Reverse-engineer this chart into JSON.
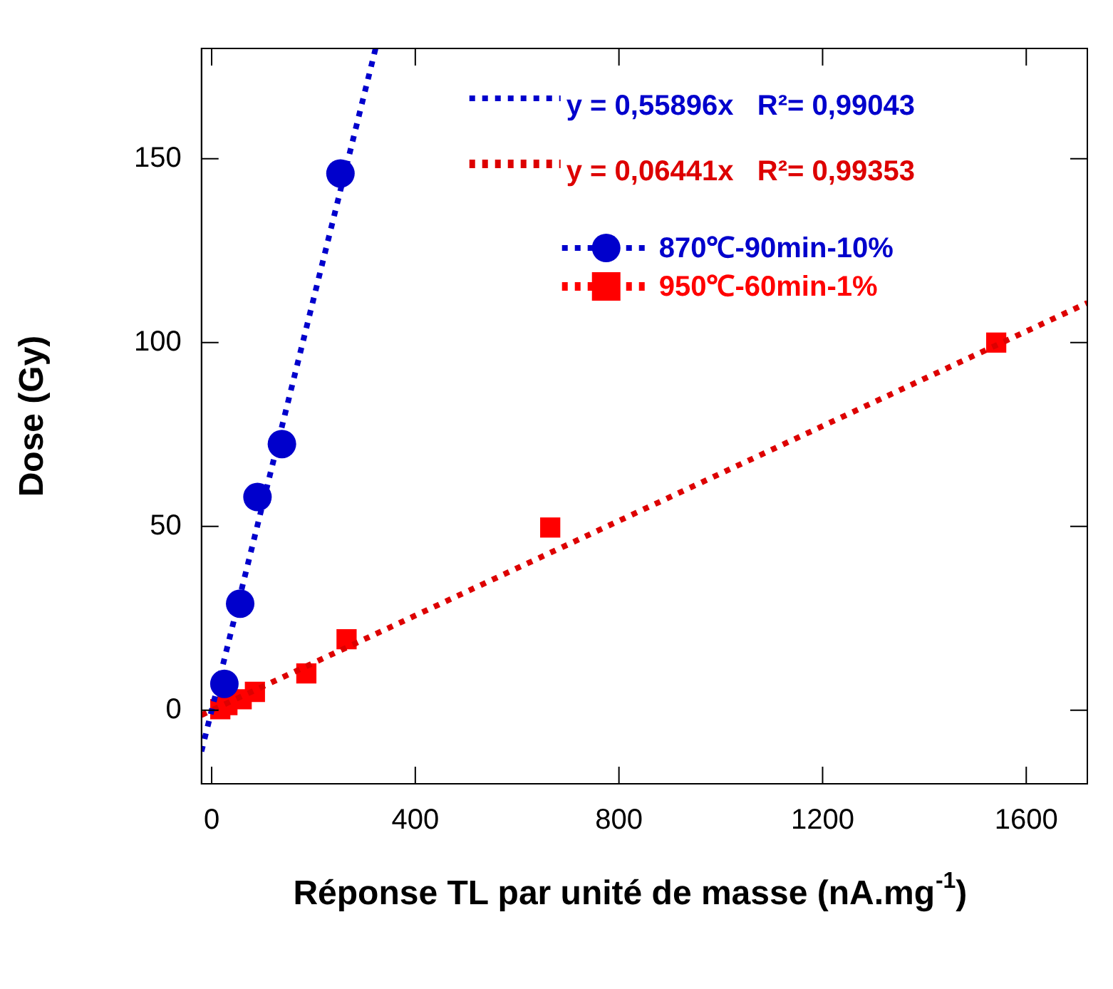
{
  "chart_data": {
    "type": "scatter",
    "xlabel": "Réponse TL par unité de masse (nA.mg$^{-1}$)",
    "ylabel": "Dose (Gy)",
    "xlim": [
      -20,
      1720
    ],
    "xticks": [
      0,
      400,
      800,
      1200,
      1600
    ],
    "ylim": [
      -20,
      180
    ],
    "yticks": [
      0,
      50,
      100,
      150
    ],
    "grid": false,
    "legend": "right",
    "line_style": "dotted",
    "series": [
      {
        "name": "y = 0,55896x   R²= 0,99043",
        "type": "line",
        "color": "#0000cc",
        "marker": "none",
        "x": [
          -20,
          322
        ],
        "values": [
          -11.2,
          180
        ]
      },
      {
        "name": "y = 0,06441x   R²= 0,99353",
        "type": "line",
        "color": "#dd0000",
        "marker": "none",
        "x": [
          -20,
          1720
        ],
        "values": [
          -1.3,
          110.8
        ]
      },
      {
        "name": "870℃-90min-10%",
        "color": "#0000cc",
        "marker": "circle",
        "x": [
          25,
          56,
          90,
          138,
          253
        ],
        "values": [
          7.2,
          29,
          58,
          72.4,
          146
        ]
      },
      {
        "name": "950℃-60min-1%",
        "color": "#ff0000",
        "marker": "square",
        "x": [
          17,
          31,
          59,
          85,
          186,
          265,
          665,
          1541
        ],
        "values": [
          0.3,
          1.4,
          3,
          5,
          10,
          19.3,
          49.7,
          100
        ]
      }
    ]
  }
}
